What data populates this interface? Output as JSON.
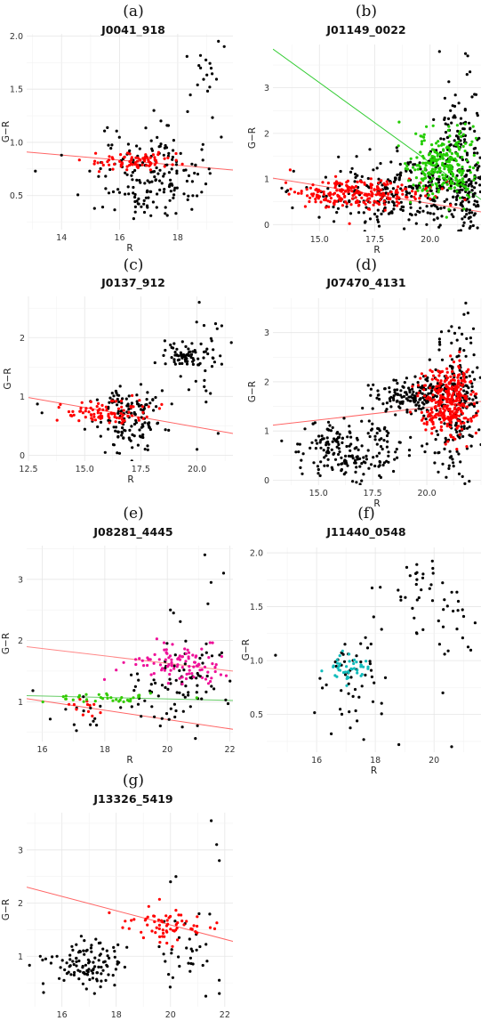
{
  "figure": {
    "panel_count": 7
  },
  "chart_data": [
    {
      "type": "scatter",
      "letter": "(a)",
      "title": "J0041_918",
      "xlabel": "R",
      "ylabel": "G−R",
      "xlim": [
        12.8,
        19.9
      ],
      "ylim": [
        0.18,
        2.02
      ],
      "xticks": [
        14,
        16,
        18
      ],
      "xtick_labels": [
        "14",
        "16",
        "18"
      ],
      "yticks": [
        0.5,
        1.0,
        1.5,
        2.0
      ],
      "ytick_labels": [
        "0.5",
        "1.0",
        "1.5",
        "2.0"
      ],
      "grid": true,
      "series": [
        {
          "color": "#000000",
          "clusters": [
            {
              "cx": 16.9,
              "cy": 0.7,
              "sx": 0.85,
              "sy": 0.22,
              "n": 170
            },
            {
              "cx": 18.9,
              "cy": 1.65,
              "sx": 0.45,
              "sy": 0.14,
              "n": 14
            },
            {
              "cx": 18.6,
              "cy": 0.72,
              "sx": 0.4,
              "sy": 0.2,
              "n": 10
            }
          ],
          "points": [
            [
              13.1,
              0.73
            ],
            [
              14.0,
              0.88
            ],
            [
              19.5,
              1.05
            ],
            [
              19.6,
              1.9
            ],
            [
              19.4,
              1.95
            ],
            [
              19.1,
              1.52
            ]
          ]
        },
        {
          "color": "#ff0000",
          "clusters": [
            {
              "cx": 16.6,
              "cy": 0.82,
              "sx": 0.75,
              "sy": 0.04,
              "n": 80
            }
          ]
        }
      ],
      "fit_lines": [
        {
          "color": "#ff6666",
          "x": [
            12.8,
            19.9
          ],
          "y": [
            0.91,
            0.74
          ]
        }
      ]
    },
    {
      "type": "scatter",
      "letter": "(b)",
      "title": "J01149_0022",
      "xlabel": "R",
      "ylabel": "G−R",
      "xlim": [
        12.9,
        22.3
      ],
      "ylim": [
        -0.15,
        3.95
      ],
      "xticks": [
        15.0,
        17.5,
        20.0
      ],
      "xtick_labels": [
        "15.0",
        "17.5",
        "20.0"
      ],
      "yticks": [
        0,
        1,
        2,
        3
      ],
      "ytick_labels": [
        "0",
        "1",
        "2",
        "3"
      ],
      "grid": true,
      "series": [
        {
          "color": "#000000",
          "clusters": [
            {
              "cx": 19.3,
              "cy": 0.7,
              "sx": 2.1,
              "sy": 0.42,
              "n": 330
            },
            {
              "cx": 21.4,
              "cy": 1.8,
              "sx": 0.6,
              "sy": 0.6,
              "n": 110
            },
            {
              "cx": 21.7,
              "cy": 0.5,
              "sx": 0.35,
              "sy": 0.35,
              "n": 60
            }
          ],
          "points": [
            [
              21.6,
              3.75
            ],
            [
              21.7,
              3.7
            ],
            [
              21.8,
              3.35
            ],
            [
              21.9,
              2.8
            ],
            [
              13.3,
              0.8
            ],
            [
              13.5,
              0.72
            ]
          ]
        },
        {
          "color": "#ff0000",
          "clusters": [
            {
              "cx": 16.8,
              "cy": 0.68,
              "sx": 1.5,
              "sy": 0.16,
              "n": 230
            }
          ]
        },
        {
          "color": "#22cc00",
          "clusters": [
            {
              "cx": 20.6,
              "cy": 1.3,
              "sx": 0.8,
              "sy": 0.38,
              "n": 260
            }
          ],
          "points": [
            [
              18.6,
              2.25
            ]
          ]
        }
      ],
      "fit_lines": [
        {
          "color": "#ff6666",
          "x": [
            12.9,
            22.3
          ],
          "y": [
            1.02,
            0.28
          ]
        },
        {
          "color": "#33cc33",
          "x": [
            12.9,
            22.3
          ],
          "y": [
            3.85,
            0.55
          ]
        }
      ]
    },
    {
      "type": "scatter",
      "letter": "(c)",
      "title": "J0137_912",
      "xlabel": "R",
      "ylabel": "G−R",
      "xlim": [
        12.5,
        21.6
      ],
      "ylim": [
        -0.1,
        2.7
      ],
      "xticks": [
        12.5,
        15.0,
        17.5,
        20.0
      ],
      "xtick_labels": [
        "12.5",
        "15.0",
        "17.5",
        "20.0"
      ],
      "yticks": [
        0,
        1,
        2
      ],
      "ytick_labels": [
        "0",
        "1",
        "2"
      ],
      "grid": true,
      "series": [
        {
          "color": "#000000",
          "clusters": [
            {
              "cx": 17.0,
              "cy": 0.65,
              "sx": 0.7,
              "sy": 0.28,
              "n": 140
            },
            {
              "cx": 19.3,
              "cy": 1.72,
              "sx": 0.55,
              "sy": 0.1,
              "n": 60
            },
            {
              "cx": 20.3,
              "cy": 1.55,
              "sx": 0.7,
              "sy": 0.35,
              "n": 30
            }
          ],
          "points": [
            [
              12.9,
              0.87
            ],
            [
              13.1,
              0.72
            ],
            [
              20.1,
              2.6
            ],
            [
              21.1,
              2.2
            ],
            [
              20.9,
              2.15
            ],
            [
              20.0,
              0.1
            ],
            [
              20.6,
              1.05
            ]
          ]
        },
        {
          "color": "#ff0000",
          "clusters": [
            {
              "cx": 16.0,
              "cy": 0.72,
              "sx": 0.95,
              "sy": 0.1,
              "n": 90
            }
          ]
        }
      ],
      "fit_lines": [
        {
          "color": "#ff6666",
          "x": [
            12.5,
            21.6
          ],
          "y": [
            0.98,
            0.37
          ]
        }
      ]
    },
    {
      "type": "scatter",
      "letter": "(d)",
      "title": "J07470_4131",
      "xlabel": "R",
      "ylabel": "G−R",
      "xlim": [
        12.9,
        22.5
      ],
      "ylim": [
        -0.1,
        3.7
      ],
      "xticks": [
        15.0,
        17.5,
        20.0
      ],
      "xtick_labels": [
        "15.0",
        "17.5",
        "20.0"
      ],
      "yticks": [
        0,
        1,
        2,
        3
      ],
      "ytick_labels": [
        "0",
        "1",
        "2",
        "3"
      ],
      "grid": true,
      "series": [
        {
          "color": "#000000",
          "clusters": [
            {
              "cx": 16.6,
              "cy": 0.65,
              "sx": 1.3,
              "sy": 0.32,
              "n": 200
            },
            {
              "cx": 19.3,
              "cy": 1.72,
              "sx": 0.8,
              "sy": 0.18,
              "n": 150
            },
            {
              "cx": 21.4,
              "cy": 1.6,
              "sx": 0.6,
              "sy": 0.8,
              "n": 220
            }
          ],
          "points": [
            [
              21.8,
              3.6
            ],
            [
              21.9,
              3.4
            ],
            [
              21.5,
              3.1
            ],
            [
              13.3,
              0.8
            ]
          ]
        },
        {
          "color": "#ff0000",
          "clusters": [
            {
              "cx": 21.0,
              "cy": 1.55,
              "sx": 0.65,
              "sy": 0.38,
              "n": 320
            }
          ]
        }
      ],
      "fit_lines": [
        {
          "color": "#ff6666",
          "x": [
            12.9,
            22.5
          ],
          "y": [
            1.12,
            1.6
          ]
        }
      ]
    },
    {
      "type": "scatter",
      "letter": "(e)",
      "title": "J08281_4445",
      "xlabel": "R",
      "ylabel": "G−R",
      "xlim": [
        15.5,
        22.1
      ],
      "ylim": [
        0.35,
        3.55
      ],
      "xticks": [
        16,
        18,
        20,
        22
      ],
      "xtick_labels": [
        "16",
        "18",
        "20",
        "22"
      ],
      "yticks": [
        1,
        2,
        3
      ],
      "ytick_labels": [
        "1",
        "2",
        "3"
      ],
      "grid": true,
      "series": [
        {
          "color": "#000000",
          "clusters": [
            {
              "cx": 20.5,
              "cy": 1.3,
              "sx": 0.9,
              "sy": 0.35,
              "n": 90
            },
            {
              "cx": 17.2,
              "cy": 0.85,
              "sx": 0.5,
              "sy": 0.15,
              "n": 14
            }
          ],
          "points": [
            [
              21.2,
              3.4
            ],
            [
              21.8,
              3.1
            ],
            [
              21.4,
              2.95
            ],
            [
              21.3,
              2.6
            ],
            [
              20.1,
              2.5
            ],
            [
              20.2,
              2.45
            ],
            [
              20.9,
              0.4
            ],
            [
              15.7,
              1.18
            ]
          ]
        },
        {
          "color": "#ff0000",
          "clusters": [
            {
              "cx": 17.2,
              "cy": 0.9,
              "sx": 0.35,
              "sy": 0.12,
              "n": 12
            }
          ]
        },
        {
          "color": "#33cc00",
          "clusters": [
            {
              "cx": 18.0,
              "cy": 1.05,
              "sx": 1.3,
              "sy": 0.04,
              "n": 38
            }
          ]
        },
        {
          "color": "#ee1199",
          "clusters": [
            {
              "cx": 20.4,
              "cy": 1.6,
              "sx": 0.75,
              "sy": 0.17,
              "n": 100
            }
          ]
        }
      ],
      "fit_lines": [
        {
          "color": "#ff6666",
          "x": [
            15.5,
            22.1
          ],
          "y": [
            1.05,
            0.55
          ]
        },
        {
          "color": "#ff8888",
          "x": [
            15.5,
            22.1
          ],
          "y": [
            1.9,
            1.5
          ]
        },
        {
          "color": "#66cc66",
          "x": [
            15.5,
            22.1
          ],
          "y": [
            1.1,
            1.02
          ]
        }
      ]
    },
    {
      "type": "scatter",
      "letter": "(f)",
      "title": "J11440_0548",
      "xlabel": "R",
      "ylabel": "G−R",
      "xlim": [
        14.3,
        21.6
      ],
      "ylim": [
        0.15,
        2.05
      ],
      "xticks": [
        16,
        18,
        20
      ],
      "xtick_labels": [
        "16",
        "18",
        "20"
      ],
      "yticks": [
        0.5,
        1.0,
        1.5,
        2.0
      ],
      "ytick_labels": [
        "0.5",
        "1.0",
        "1.5",
        "2.0"
      ],
      "grid": true,
      "series": [
        {
          "color": "#000000",
          "clusters": [
            {
              "cx": 17.2,
              "cy": 0.85,
              "sx": 0.55,
              "sy": 0.25,
              "n": 50
            },
            {
              "cx": 19.6,
              "cy": 1.6,
              "sx": 0.8,
              "sy": 0.16,
              "n": 38
            },
            {
              "cx": 20.8,
              "cy": 1.35,
              "sx": 0.45,
              "sy": 0.18,
              "n": 14
            }
          ],
          "points": [
            [
              14.6,
              1.05
            ],
            [
              18.8,
              0.22
            ],
            [
              20.6,
              0.2
            ],
            [
              20.3,
              0.7
            ],
            [
              21.4,
              1.35
            ],
            [
              16.5,
              0.32
            ]
          ]
        },
        {
          "color": "#11bbbb",
          "clusters": [
            {
              "cx": 17.2,
              "cy": 0.93,
              "sx": 0.35,
              "sy": 0.06,
              "n": 42
            }
          ]
        }
      ],
      "fit_lines": []
    },
    {
      "type": "scatter",
      "letter": "(g)",
      "title": "J13326_5419",
      "xlabel": "R",
      "ylabel": "G−R",
      "xlim": [
        14.7,
        22.3
      ],
      "ylim": [
        0.05,
        3.7
      ],
      "xticks": [
        16,
        18,
        20,
        22
      ],
      "xtick_labels": [
        "16",
        "18",
        "20",
        "22"
      ],
      "yticks": [
        1,
        2,
        3
      ],
      "ytick_labels": [
        "1",
        "2",
        "3"
      ],
      "grid": true,
      "series": [
        {
          "color": "#000000",
          "clusters": [
            {
              "cx": 17.0,
              "cy": 0.85,
              "sx": 0.7,
              "sy": 0.2,
              "n": 110
            },
            {
              "cx": 20.8,
              "cy": 1.1,
              "sx": 0.8,
              "sy": 0.4,
              "n": 35
            }
          ],
          "points": [
            [
              21.5,
              3.55
            ],
            [
              21.7,
              3.1
            ],
            [
              21.8,
              2.8
            ],
            [
              20.2,
              2.5
            ],
            [
              20.0,
              2.4
            ],
            [
              15.2,
              1.0
            ],
            [
              15.4,
              0.95
            ],
            [
              21.3,
              0.25
            ],
            [
              21.8,
              0.3
            ],
            [
              17.2,
              0.3
            ]
          ]
        },
        {
          "color": "#ff0000",
          "clusters": [
            {
              "cx": 19.9,
              "cy": 1.58,
              "sx": 0.75,
              "sy": 0.18,
              "n": 65
            }
          ]
        }
      ],
      "fit_lines": [
        {
          "color": "#ff6666",
          "x": [
            14.7,
            22.3
          ],
          "y": [
            2.3,
            1.28
          ]
        }
      ]
    }
  ]
}
